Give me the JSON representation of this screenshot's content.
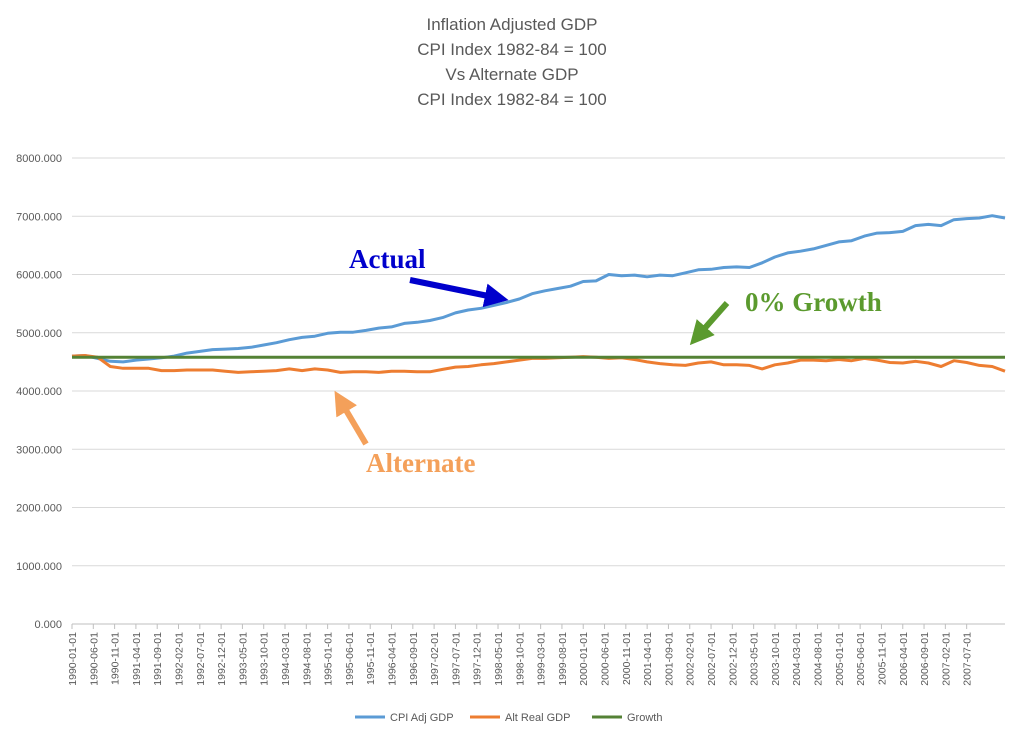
{
  "chart_data": {
    "type": "line",
    "title": [
      "Inflation Adjusted GDP",
      "CPI Index 1982-84 = 100",
      "Vs Alternate GDP",
      "CPI Index 1982-84 = 100"
    ],
    "xlabel": "",
    "ylabel": "",
    "ylim": [
      0,
      8000
    ],
    "yticks": [
      "0.000",
      "1000.000",
      "2000.000",
      "3000.000",
      "4000.000",
      "5000.000",
      "6000.000",
      "7000.000",
      "8000.000"
    ],
    "grid": true,
    "legend": "bottom",
    "x_tick_labels": [
      "1990-01-01",
      "1990-06-01",
      "1990-11-01",
      "1991-04-01",
      "1991-09-01",
      "1992-02-01",
      "1992-07-01",
      "1992-12-01",
      "1993-05-01",
      "1993-10-01",
      "1994-03-01",
      "1994-08-01",
      "1995-01-01",
      "1995-06-01",
      "1995-11-01",
      "1996-04-01",
      "1996-09-01",
      "1997-02-01",
      "1997-07-01",
      "1997-12-01",
      "1998-05-01",
      "1998-10-01",
      "1999-03-01",
      "1999-08-01",
      "2000-01-01",
      "2000-06-01",
      "2000-11-01",
      "2001-04-01",
      "2001-09-01",
      "2002-02-01",
      "2002-07-01",
      "2002-12-01",
      "2003-05-01",
      "2003-10-01",
      "2004-03-01",
      "2004-08-01",
      "2005-01-01",
      "2005-06-01",
      "2005-11-01",
      "2006-04-01",
      "2006-09-01",
      "2007-02-01",
      "2007-07-01"
    ],
    "x_start": "1990-01",
    "x_step_months": 3,
    "series": [
      {
        "name": "CPI Adj GDP",
        "color": "#5B9BD5",
        "values": [
          4600,
          4610,
          4560,
          4510,
          4500,
          4530,
          4550,
          4570,
          4600,
          4650,
          4680,
          4710,
          4720,
          4730,
          4750,
          4790,
          4830,
          4880,
          4920,
          4940,
          4990,
          5010,
          5010,
          5040,
          5080,
          5100,
          5160,
          5180,
          5210,
          5260,
          5340,
          5390,
          5420,
          5470,
          5520,
          5580,
          5670,
          5720,
          5760,
          5800,
          5880,
          5890,
          6000,
          5980,
          5990,
          5960,
          5990,
          5980,
          6030,
          6080,
          6090,
          6120,
          6130,
          6120,
          6200,
          6300,
          6370,
          6400,
          6440,
          6500,
          6560,
          6580,
          6660,
          6710,
          6720,
          6740,
          6840,
          6860,
          6840,
          6940,
          6960,
          6970,
          7010,
          6970
        ]
      },
      {
        "name": "Alt Real GDP",
        "color": "#ED7D31",
        "values": [
          4600,
          4610,
          4580,
          4420,
          4390,
          4390,
          4390,
          4350,
          4350,
          4360,
          4360,
          4360,
          4340,
          4320,
          4330,
          4340,
          4350,
          4380,
          4350,
          4380,
          4360,
          4320,
          4330,
          4330,
          4320,
          4340,
          4340,
          4330,
          4330,
          4370,
          4410,
          4420,
          4450,
          4470,
          4500,
          4530,
          4560,
          4560,
          4570,
          4580,
          4590,
          4580,
          4560,
          4570,
          4540,
          4500,
          4470,
          4450,
          4440,
          4480,
          4500,
          4450,
          4450,
          4440,
          4380,
          4450,
          4480,
          4530,
          4530,
          4520,
          4540,
          4520,
          4560,
          4530,
          4490,
          4480,
          4510,
          4480,
          4420,
          4520,
          4490,
          4440,
          4420,
          4340
        ]
      },
      {
        "name": "Growth",
        "color": "#548235",
        "values": [
          4580,
          4580
        ]
      }
    ],
    "annotations": [
      {
        "text": "Actual",
        "color": "#0000CC"
      },
      {
        "text": "0% Growth",
        "color": "#5B9A2E"
      },
      {
        "text": "Alternate",
        "color": "#F4A05A"
      }
    ]
  }
}
